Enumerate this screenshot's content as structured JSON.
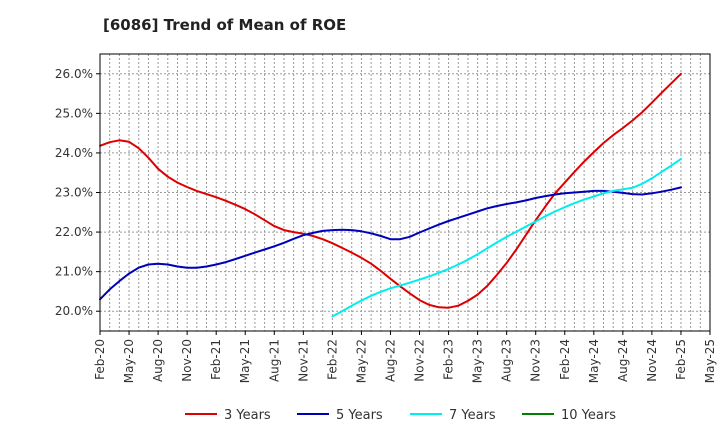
{
  "chart_data": {
    "type": "line",
    "title": "[6086]  Trend of Mean of ROE",
    "xlabel": "",
    "ylabel": "",
    "x_ticks": [
      "Feb-20",
      "May-20",
      "Aug-20",
      "Nov-20",
      "Feb-21",
      "May-21",
      "Aug-21",
      "Nov-21",
      "Feb-22",
      "May-22",
      "Aug-22",
      "Nov-22",
      "Feb-23",
      "May-23",
      "Aug-23",
      "Nov-23",
      "Feb-24",
      "May-24",
      "Aug-24",
      "Nov-24",
      "Feb-25",
      "May-25"
    ],
    "y_ticks": [
      "20.0%",
      "21.0%",
      "22.0%",
      "23.0%",
      "24.0%",
      "25.0%",
      "26.0%"
    ],
    "ylim": [
      19.5,
      26.5
    ],
    "grid": true,
    "legend_position": "bottom",
    "series": [
      {
        "name": "3 Years",
        "color": "#dd0000",
        "x": [
          "Feb-20",
          "Mar-20",
          "Apr-20",
          "May-20",
          "Jun-20",
          "Jul-20",
          "Aug-20",
          "Sep-20",
          "Oct-20",
          "Nov-20",
          "Dec-20",
          "Jan-21",
          "Feb-21",
          "Mar-21",
          "Apr-21",
          "May-21",
          "Jun-21",
          "Jul-21",
          "Aug-21",
          "Sep-21",
          "Oct-21",
          "Nov-21",
          "Dec-21",
          "Jan-22",
          "Feb-22",
          "Mar-22",
          "Apr-22",
          "May-22",
          "Jun-22",
          "Jul-22",
          "Aug-22",
          "Sep-22",
          "Oct-22",
          "Nov-22",
          "Dec-22",
          "Jan-23",
          "Feb-23",
          "Mar-23",
          "Apr-23",
          "May-23",
          "Jun-23",
          "Jul-23",
          "Aug-23",
          "Sep-23",
          "Oct-23",
          "Nov-23",
          "Dec-23",
          "Jan-24",
          "Feb-24",
          "Mar-24",
          "Apr-24",
          "May-24",
          "Jun-24",
          "Jul-24",
          "Aug-24",
          "Sep-24",
          "Oct-24",
          "Nov-24",
          "Dec-24",
          "Jan-25",
          "Feb-25"
        ],
        "values": [
          24.18,
          24.27,
          24.32,
          24.28,
          24.12,
          23.88,
          23.6,
          23.4,
          23.25,
          23.14,
          23.04,
          22.96,
          22.88,
          22.79,
          22.69,
          22.58,
          22.45,
          22.3,
          22.15,
          22.05,
          22.0,
          21.96,
          21.9,
          21.82,
          21.72,
          21.6,
          21.48,
          21.35,
          21.2,
          21.02,
          20.82,
          20.63,
          20.45,
          20.28,
          20.16,
          20.1,
          20.09,
          20.14,
          20.26,
          20.42,
          20.64,
          20.92,
          21.22,
          21.56,
          21.93,
          22.3,
          22.65,
          22.98,
          23.25,
          23.52,
          23.78,
          24.02,
          24.25,
          24.45,
          24.63,
          24.82,
          25.03,
          25.27,
          25.52,
          25.76,
          26.0
        ]
      },
      {
        "name": "5 Years",
        "color": "#0000bb",
        "x": [
          "Feb-20",
          "Mar-20",
          "Apr-20",
          "May-20",
          "Jun-20",
          "Jul-20",
          "Aug-20",
          "Sep-20",
          "Oct-20",
          "Nov-20",
          "Dec-20",
          "Jan-21",
          "Feb-21",
          "Mar-21",
          "Apr-21",
          "May-21",
          "Jun-21",
          "Jul-21",
          "Aug-21",
          "Sep-21",
          "Oct-21",
          "Nov-21",
          "Dec-21",
          "Jan-22",
          "Feb-22",
          "Mar-22",
          "Apr-22",
          "May-22",
          "Jun-22",
          "Jul-22",
          "Aug-22",
          "Sep-22",
          "Oct-22",
          "Nov-22",
          "Dec-22",
          "Jan-23",
          "Feb-23",
          "Mar-23",
          "Apr-23",
          "May-23",
          "Jun-23",
          "Jul-23",
          "Aug-23",
          "Sep-23",
          "Oct-23",
          "Nov-23",
          "Dec-23",
          "Jan-24",
          "Feb-24",
          "Mar-24",
          "Apr-24",
          "May-24",
          "Jun-24",
          "Jul-24",
          "Aug-24",
          "Sep-24",
          "Oct-24",
          "Nov-24",
          "Dec-24",
          "Jan-25",
          "Feb-25"
        ],
        "values": [
          20.3,
          20.55,
          20.76,
          20.95,
          21.1,
          21.18,
          21.2,
          21.18,
          21.13,
          21.1,
          21.1,
          21.13,
          21.18,
          21.24,
          21.32,
          21.4,
          21.48,
          21.56,
          21.64,
          21.73,
          21.83,
          21.92,
          21.98,
          22.03,
          22.05,
          22.06,
          22.05,
          22.02,
          21.97,
          21.9,
          21.82,
          21.82,
          21.88,
          21.99,
          22.09,
          22.19,
          22.28,
          22.36,
          22.44,
          22.52,
          22.6,
          22.66,
          22.71,
          22.75,
          22.8,
          22.86,
          22.91,
          22.95,
          22.98,
          23.0,
          23.02,
          23.04,
          23.04,
          23.02,
          22.99,
          22.96,
          22.95,
          22.98,
          23.02,
          23.07,
          23.13
        ]
      },
      {
        "name": "7 Years",
        "color": "#00eeee",
        "x": [
          "Feb-22",
          "Mar-22",
          "Apr-22",
          "May-22",
          "Jun-22",
          "Jul-22",
          "Aug-22",
          "Sep-22",
          "Oct-22",
          "Nov-22",
          "Dec-22",
          "Jan-23",
          "Feb-23",
          "Mar-23",
          "Apr-23",
          "May-23",
          "Jun-23",
          "Jul-23",
          "Aug-23",
          "Sep-23",
          "Oct-23",
          "Nov-23",
          "Dec-23",
          "Jan-24",
          "Feb-24",
          "Mar-24",
          "Apr-24",
          "May-24",
          "Jun-24",
          "Jul-24",
          "Aug-24",
          "Sep-24",
          "Oct-24",
          "Nov-24",
          "Dec-24",
          "Jan-25",
          "Feb-25"
        ],
        "values": [
          19.87,
          20.0,
          20.14,
          20.27,
          20.39,
          20.49,
          20.58,
          20.65,
          20.72,
          20.8,
          20.88,
          20.97,
          21.07,
          21.18,
          21.3,
          21.44,
          21.59,
          21.74,
          21.88,
          22.01,
          22.14,
          22.27,
          22.4,
          22.52,
          22.63,
          22.73,
          22.82,
          22.9,
          22.98,
          23.04,
          23.08,
          23.12,
          23.22,
          23.36,
          23.52,
          23.68,
          23.85
        ]
      },
      {
        "name": "10 Years",
        "color": "#008000",
        "x": [],
        "values": []
      }
    ]
  }
}
